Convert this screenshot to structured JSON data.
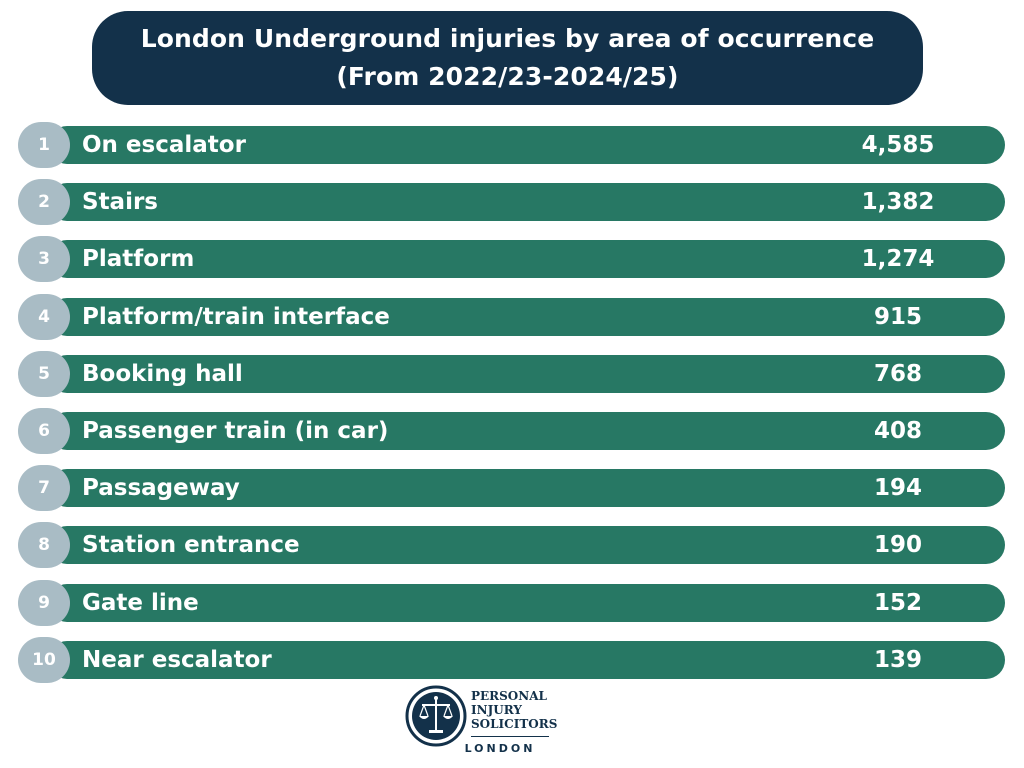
{
  "header": {
    "title_line1": "London Underground injuries by area of occurrence",
    "title_line2": "(From 2022/23-2024/25)"
  },
  "chart_data": {
    "type": "table",
    "title": "London Underground injuries by area of occurrence",
    "subtitle": "(From 2022/23-2024/25)",
    "rows": [
      {
        "rank": "1",
        "label": "On escalator",
        "value": 4585,
        "display": "4,585"
      },
      {
        "rank": "2",
        "label": "Stairs",
        "value": 1382,
        "display": "1,382"
      },
      {
        "rank": "3",
        "label": "Platform",
        "value": 1274,
        "display": "1,274"
      },
      {
        "rank": "4",
        "label": "Platform/train interface",
        "value": 915,
        "display": "915"
      },
      {
        "rank": "5",
        "label": "Booking hall",
        "value": 768,
        "display": "768"
      },
      {
        "rank": "6",
        "label": "Passenger train (in car)",
        "value": 408,
        "display": "408"
      },
      {
        "rank": "7",
        "label": "Passageway",
        "value": 194,
        "display": "194"
      },
      {
        "rank": "8",
        "label": "Station entrance",
        "value": 190,
        "display": "190"
      },
      {
        "rank": "9",
        "label": "Gate line",
        "value": 152,
        "display": "152"
      },
      {
        "rank": "10",
        "label": "Near escalator",
        "value": 139,
        "display": "139"
      }
    ]
  },
  "logo": {
    "icon": "scales-of-justice-icon",
    "line1": "PERSONAL",
    "line2": "INJURY",
    "line3": "SOLICITORS",
    "city": "LONDON"
  },
  "colors": {
    "title_bg": "#13314a",
    "bar": "#277864",
    "badge": "#a9bcc5",
    "text": "#ffffff"
  }
}
